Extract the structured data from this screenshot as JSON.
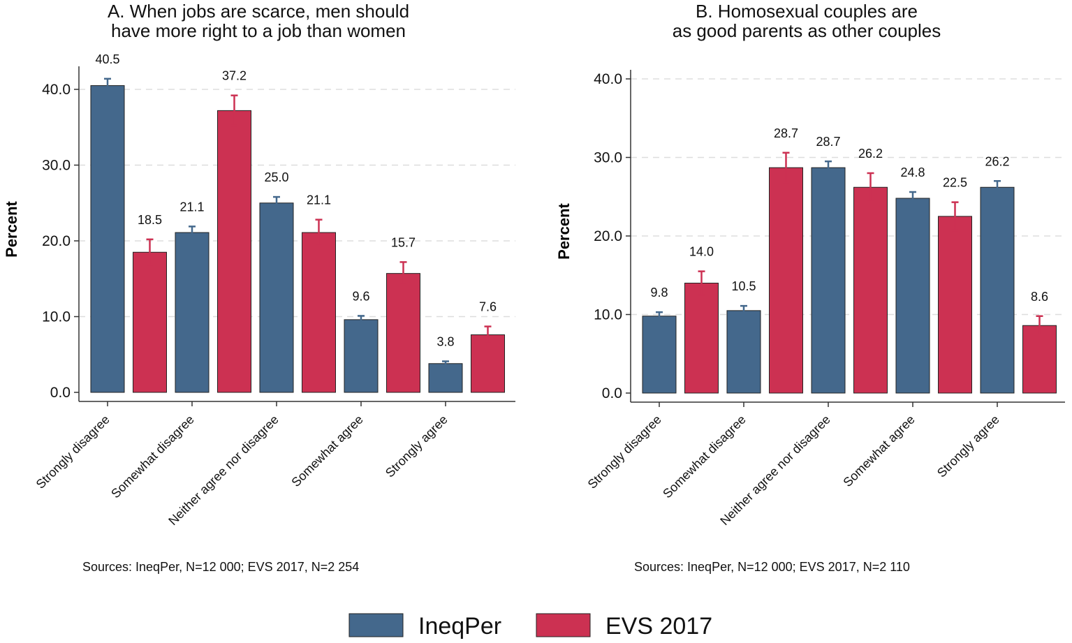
{
  "colors": {
    "ineqper": "#44688c",
    "evs": "#cc3152",
    "axis": "#333333",
    "grid": "#dddddd"
  },
  "legend": [
    {
      "name": "IneqPer",
      "color": "#44688c"
    },
    {
      "name": "EVS 2017",
      "color": "#cc3152"
    }
  ],
  "chart_data": [
    {
      "type": "bar",
      "title_lines": [
        "A. When jobs are scarce, men should",
        "have more right to a job than women"
      ],
      "ylabel": "Percent",
      "ylim": [
        0,
        42
      ],
      "yticks": [
        "0.0",
        "10.0",
        "20.0",
        "30.0",
        "40.0"
      ],
      "categories": [
        "Strongly disagree",
        "Somewhat disagree",
        "Neither agree nor disagree",
        "Somewhat agree",
        "Strongly agree"
      ],
      "bars": [
        {
          "category": "Strongly disagree",
          "series": "IneqPer",
          "value": 40.5,
          "label": "40.5",
          "ci_low": 39.6,
          "ci_high": 41.4
        },
        {
          "category": "Strongly disagree",
          "series": "EVS 2017",
          "value": 18.5,
          "label": "18.5",
          "ci_low": 16.8,
          "ci_high": 20.2
        },
        {
          "category": "Somewhat disagree",
          "series": "IneqPer",
          "value": 21.1,
          "label": "21.1",
          "ci_low": 20.3,
          "ci_high": 21.9
        },
        {
          "category": "Somewhat disagree",
          "series": "EVS 2017",
          "value": 37.2,
          "label": "37.2",
          "ci_low": 35.2,
          "ci_high": 39.2
        },
        {
          "category": "Neither agree nor disagree",
          "series": "IneqPer",
          "value": 25.0,
          "label": "25.0",
          "ci_low": 24.2,
          "ci_high": 25.8
        },
        {
          "category": "Neither agree nor disagree",
          "series": "EVS 2017",
          "value": 21.1,
          "label": "21.1",
          "ci_low": 19.4,
          "ci_high": 22.8
        },
        {
          "category": "Somewhat agree",
          "series": "IneqPer",
          "value": 9.6,
          "label": "9.6",
          "ci_low": 9.1,
          "ci_high": 10.1
        },
        {
          "category": "Somewhat agree",
          "series": "EVS 2017",
          "value": 15.7,
          "label": "15.7",
          "ci_low": 14.2,
          "ci_high": 17.2
        },
        {
          "category": "Strongly agree",
          "series": "IneqPer",
          "value": 3.8,
          "label": "3.8",
          "ci_low": 3.5,
          "ci_high": 4.1
        },
        {
          "category": "Strongly agree",
          "series": "EVS 2017",
          "value": 7.6,
          "label": "7.6",
          "ci_low": 6.5,
          "ci_high": 8.7
        }
      ],
      "source": "Sources: IneqPer, N=12 000; EVS 2017, N=2 254"
    },
    {
      "type": "bar",
      "title_lines": [
        "B. Homosexual couples are",
        "as good parents as other couples"
      ],
      "ylabel": "Percent",
      "ylim": [
        0,
        41
      ],
      "yticks": [
        "0.0",
        "10.0",
        "20.0",
        "30.0",
        "40.0"
      ],
      "categories": [
        "Strongly disagree",
        "Somewhat disagree",
        "Neither agree nor disagree",
        "Somewhat agree",
        "Strongly agree"
      ],
      "bars": [
        {
          "category": "Strongly disagree",
          "series": "IneqPer",
          "value": 9.8,
          "label": "9.8",
          "ci_low": 9.3,
          "ci_high": 10.3
        },
        {
          "category": "Strongly disagree",
          "series": "EVS 2017",
          "value": 14.0,
          "label": "14.0",
          "ci_low": 12.5,
          "ci_high": 15.5
        },
        {
          "category": "Somewhat disagree",
          "series": "IneqPer",
          "value": 10.5,
          "label": "10.5",
          "ci_low": 9.9,
          "ci_high": 11.1
        },
        {
          "category": "Somewhat disagree",
          "series": "EVS 2017",
          "value": 28.7,
          "label": "28.7",
          "ci_low": 26.8,
          "ci_high": 30.6
        },
        {
          "category": "Neither agree nor disagree",
          "series": "IneqPer",
          "value": 28.7,
          "label": "28.7",
          "ci_low": 27.9,
          "ci_high": 29.5
        },
        {
          "category": "Neither agree nor disagree",
          "series": "EVS 2017",
          "value": 26.2,
          "label": "26.2",
          "ci_low": 24.4,
          "ci_high": 28.0
        },
        {
          "category": "Somewhat agree",
          "series": "IneqPer",
          "value": 24.8,
          "label": "24.8",
          "ci_low": 24.0,
          "ci_high": 25.6
        },
        {
          "category": "Somewhat agree",
          "series": "EVS 2017",
          "value": 22.5,
          "label": "22.5",
          "ci_low": 20.7,
          "ci_high": 24.3
        },
        {
          "category": "Strongly agree",
          "series": "IneqPer",
          "value": 26.2,
          "label": "26.2",
          "ci_low": 25.4,
          "ci_high": 27.0
        },
        {
          "category": "Strongly agree",
          "series": "EVS 2017",
          "value": 8.6,
          "label": "8.6",
          "ci_low": 7.4,
          "ci_high": 9.8
        }
      ],
      "source": "Sources: IneqPer, N=12 000; EVS 2017, N=2 110"
    }
  ]
}
